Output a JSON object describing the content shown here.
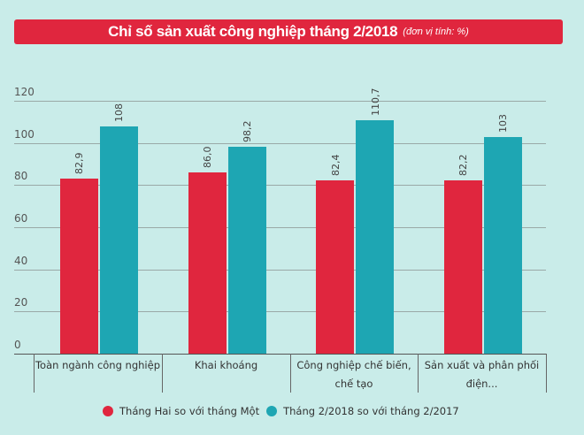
{
  "header": {
    "title": "Chỉ số sản xuất công nghiệp tháng 2/2018",
    "unit": "(đơn vị tính: %)"
  },
  "colors": {
    "background": "#c9ece9",
    "title_bar": "#e0263e",
    "series_0": "#e0263e",
    "series_1": "#1ea6b3"
  },
  "chart_data": {
    "type": "bar",
    "title": "Chỉ số sản xuất công nghiệp tháng 2/2018 (đơn vị tính: %)",
    "xlabel": "",
    "ylabel": "",
    "ylim": [
      0,
      120
    ],
    "yticks": [
      "0",
      "20",
      "40",
      "60",
      "80",
      "100",
      "120"
    ],
    "grid": true,
    "legend_position": "bottom",
    "categories": [
      "Toàn ngành công nghiệp",
      "Khai khoáng",
      "Công nghiệp chế biến, chế tạo",
      "Sản xuất và phân phối điện..."
    ],
    "category_lines": [
      [
        "Toàn ngành công nghiệp"
      ],
      [
        "Khai khoáng"
      ],
      [
        "Công nghiệp chế biến,",
        "chế tạo"
      ],
      [
        "Sản xuất và phân phối",
        "điện..."
      ]
    ],
    "series": [
      {
        "name": "Tháng Hai so với tháng Một",
        "values": [
          82.9,
          86.0,
          82.4,
          82.2
        ],
        "labels": [
          "82,9",
          "86,0",
          "82,4",
          "82,2"
        ]
      },
      {
        "name": "Tháng 2/2018 so với tháng 2/2017",
        "values": [
          108,
          98.2,
          110.7,
          103
        ],
        "labels": [
          "108",
          "98,2",
          "110,7",
          "103"
        ]
      }
    ]
  }
}
